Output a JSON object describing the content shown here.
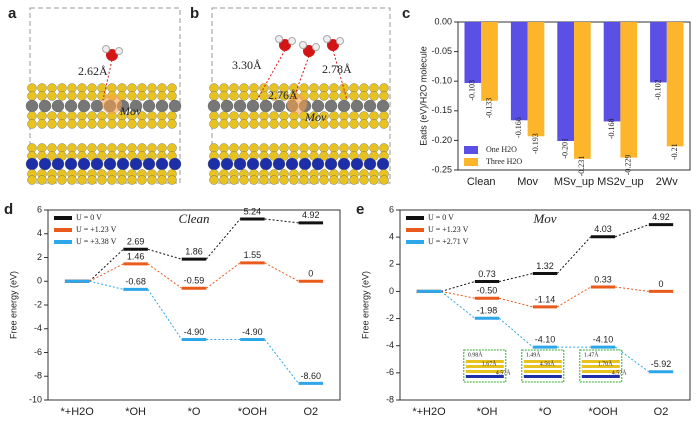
{
  "structures": [
    {
      "label": "a",
      "distances": [
        "2.62Å"
      ],
      "site": "Mov"
    },
    {
      "label": "b",
      "distances": [
        "3.30Å",
        "2.76Å",
        "2.78Å"
      ],
      "site": "Mov"
    }
  ],
  "chart_data": [
    {
      "type": "bar",
      "panel_label": "c",
      "ylabel": "Eads (eV)/H2O molecule",
      "categories": [
        "Clean",
        "Mov",
        "MSv_up",
        "MS2v_up",
        "2Wv"
      ],
      "series": [
        {
          "name": "One H2O",
          "color": "#5b50e6",
          "values": [
            -0.103,
            -0.166,
            -0.201,
            -0.168,
            -0.102
          ]
        },
        {
          "name": "Three H2O",
          "color": "#fdb62c",
          "values": [
            -0.133,
            -0.193,
            -0.231,
            -0.229,
            -0.21
          ]
        }
      ],
      "ylim": [
        -0.25,
        0
      ],
      "yticks": [
        {
          "value": 0,
          "label": "0.00"
        },
        -0.05,
        {
          "value": -0.1,
          "label": "-0.10"
        },
        -0.15,
        {
          "value": -0.2,
          "label": "-0.20"
        },
        -0.25
      ],
      "legend": "lower left"
    },
    {
      "type": "energy",
      "panel_label": "d",
      "title": "Clean",
      "ylabel": "Free energy (eV)",
      "categories": [
        "*+H2O",
        "*OH",
        "*O",
        "*OOH",
        "O2"
      ],
      "series": [
        {
          "name": "U = 0 V",
          "color": "#111111",
          "values": [
            0,
            2.69,
            1.86,
            5.24,
            4.92
          ],
          "value_labels": [
            null,
            "2.69",
            "1.86",
            "5.24",
            "4.92"
          ]
        },
        {
          "name": "U = +1.23 V",
          "color": "#ea5a1c",
          "values": [
            0,
            1.46,
            -0.59,
            1.55,
            0
          ],
          "value_labels": [
            null,
            "1.46",
            "-0.59",
            "1.55",
            "0"
          ]
        },
        {
          "name": "U = +3.38 V",
          "color": "#2ea6ea",
          "values": [
            0,
            -0.68,
            -4.9,
            -4.9,
            -8.6
          ],
          "value_labels": [
            null,
            "-0.68",
            "-4.90",
            "-4.90",
            "-8.60"
          ]
        }
      ],
      "ylim": [
        -10,
        6
      ],
      "yticks": [
        -10,
        -8,
        -6,
        -4,
        -2,
        0,
        2,
        4,
        6
      ],
      "legend": "upper left"
    },
    {
      "type": "energy",
      "panel_label": "e",
      "title": "Mov",
      "ylabel": "Free energy (eV)",
      "categories": [
        "*+H2O",
        "*OH",
        "*O",
        "*OOH",
        "O2"
      ],
      "series": [
        {
          "name": "U = 0 V",
          "color": "#111111",
          "values": [
            0,
            0.73,
            1.32,
            4.03,
            4.92
          ],
          "value_labels": [
            null,
            "0.73",
            "1.32",
            "4.03",
            "4.92"
          ]
        },
        {
          "name": "U = +1.23 V",
          "color": "#ea5a1c",
          "values": [
            0,
            -0.5,
            -1.14,
            0.33,
            0
          ],
          "value_labels": [
            null,
            "-0.50",
            "-1.14",
            "0.33",
            "0"
          ]
        },
        {
          "name": "U = +2.71 V",
          "color": "#2ea6ea",
          "values": [
            0,
            -1.98,
            -4.1,
            -4.1,
            -5.92
          ],
          "value_labels": [
            null,
            "-1.98",
            "-4.10",
            "-4.10",
            "-5.92"
          ]
        }
      ],
      "insets": [
        [
          "0.98Å",
          "1.67Å",
          "4.57Å"
        ],
        [
          "1.49Å",
          "4.56Å"
        ],
        [
          "1.47Å",
          "1.70Å",
          "4.57Å"
        ]
      ],
      "ylim": [
        -8,
        6
      ],
      "yticks": [
        -8,
        -6,
        -4,
        -2,
        0,
        2,
        4,
        6
      ],
      "legend": "upper left"
    }
  ]
}
